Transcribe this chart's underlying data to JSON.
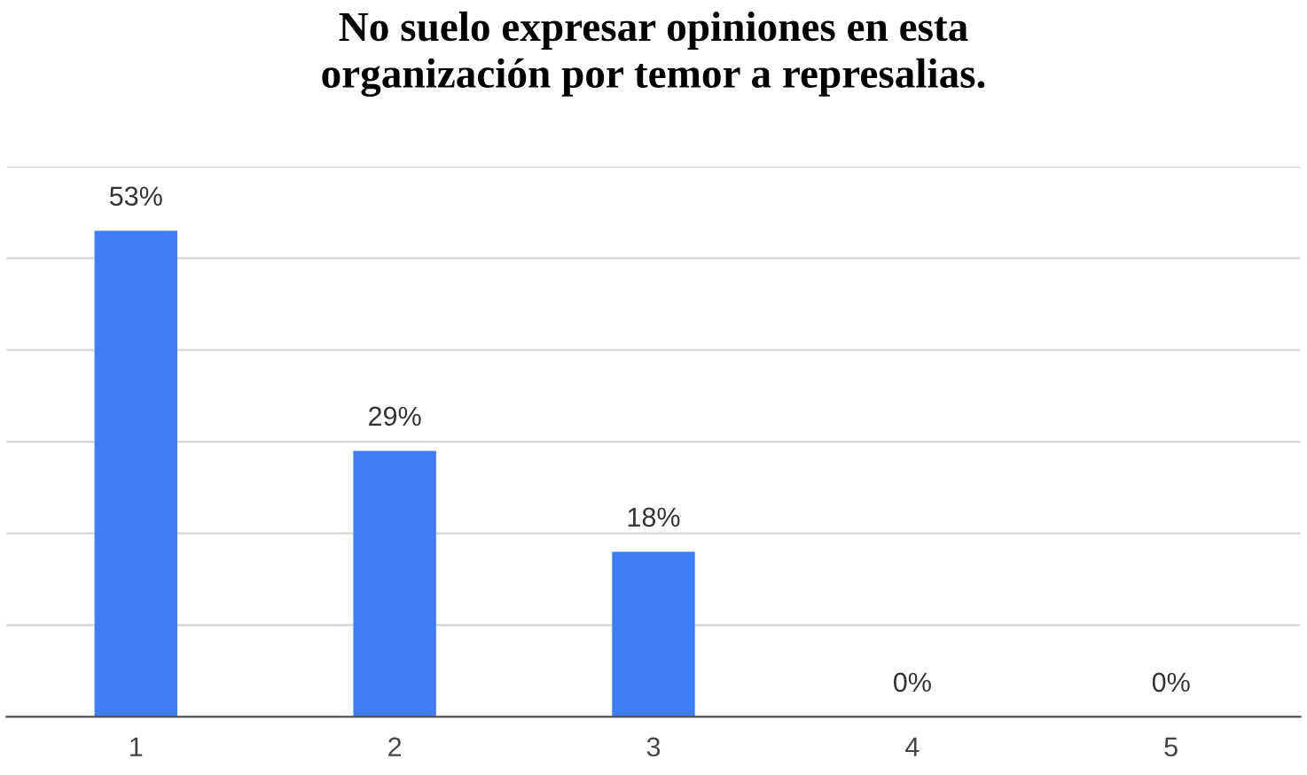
{
  "chart_data": {
    "type": "bar",
    "title": "No suelo expresar opiniones en esta\norganización por temor a represalias.",
    "categories": [
      "1",
      "2",
      "3",
      "4",
      "5"
    ],
    "values": [
      53,
      29,
      18,
      0,
      0
    ],
    "value_labels": [
      "53%",
      "29%",
      "18%",
      "0%",
      "0%"
    ],
    "color": "#3e7df6",
    "ylim": [
      0,
      60
    ],
    "yticks": [
      {
        "value": 0,
        "label": null
      },
      {
        "value": 10,
        "label": null
      },
      {
        "value": 20,
        "label": null
      },
      {
        "value": 30,
        "label": null
      },
      {
        "value": 40,
        "label": null
      },
      {
        "value": 50,
        "label": null
      },
      {
        "value": 60,
        "label": null
      }
    ],
    "tick_labels": "x",
    "grid": "y",
    "legend": false
  }
}
